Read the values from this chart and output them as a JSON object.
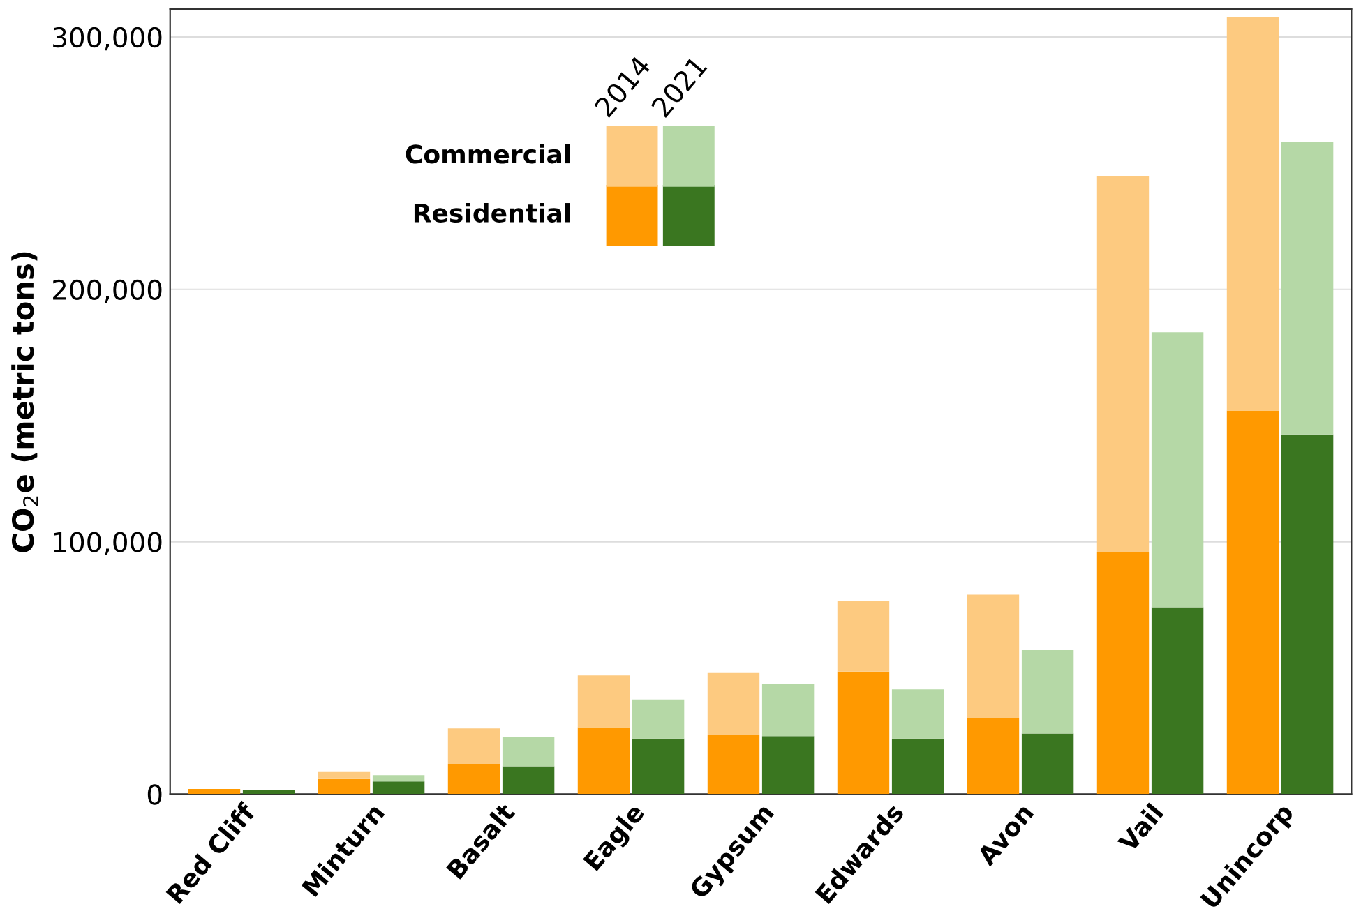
{
  "chart_data": {
    "type": "bar",
    "stacked": true,
    "ylabel": "CO$_{2}$e (metric tons)",
    "categories": [
      "Red Cliff",
      null,
      "Minturn",
      null,
      "Basalt",
      null,
      "Eagle",
      null,
      "Gypsum",
      null,
      "Edwards",
      null,
      "Avon",
      null,
      "Vail",
      null,
      "Unincorp",
      null
    ],
    "series": [
      {
        "name": "Residential",
        "colors": [
          "#ff9900",
          "#3a7620",
          "#ff9900",
          "#3a7620",
          "#ff9900",
          "#3a7620",
          "#ff9900",
          "#3a7620",
          "#ff9900",
          "#3a7620",
          "#ff9900",
          "#3a7620",
          "#ff9900",
          "#3a7620",
          "#ff9900",
          "#3a7620",
          "#ff9900",
          "#3a7620"
        ],
        "values": [
          2000,
          1500,
          6000,
          5000,
          12000,
          11000,
          26500,
          22000,
          23500,
          23000,
          48500,
          22000,
          30000,
          24000,
          96000,
          74000,
          152000,
          142500
        ]
      },
      {
        "name": "Commercial",
        "colors": [
          "#fdca80",
          "#b5d8a6",
          "#fdca80",
          "#b5d8a6",
          "#fdca80",
          "#b5d8a6",
          "#fdca80",
          "#b5d8a6",
          "#fdca80",
          "#b5d8a6",
          "#fdca80",
          "#b5d8a6",
          "#fdca80",
          "#b5d8a6",
          "#fdca80",
          "#b5d8a6",
          "#fdca80",
          "#b5d8a6"
        ],
        "values": [
          0,
          0,
          3000,
          2500,
          14000,
          11500,
          20500,
          15500,
          24500,
          20500,
          28000,
          19500,
          49000,
          33000,
          149000,
          109000,
          156000,
          116000
        ]
      }
    ],
    "annotations": [
      "2014",
      "2021"
    ],
    "ylim": [
      0,
      311000
    ],
    "yticks": [
      0,
      {
        "value": 100000,
        "label": "100,000"
      },
      {
        "value": 200000,
        "label": "200,000"
      },
      {
        "value": 300000,
        "label": "300,000"
      }
    ],
    "grid": "y",
    "legend": "top left"
  }
}
